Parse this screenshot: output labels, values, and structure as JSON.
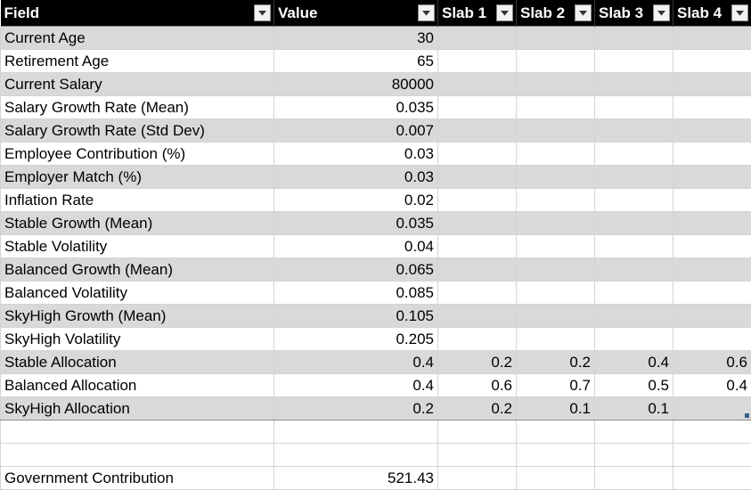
{
  "table": {
    "columns": [
      {
        "label": "Field"
      },
      {
        "label": "Value"
      },
      {
        "label": "Slab 1"
      },
      {
        "label": "Slab 2"
      },
      {
        "label": "Slab 3"
      },
      {
        "label": "Slab 4"
      }
    ],
    "rows": [
      {
        "cells": [
          "Current Age",
          "30",
          "",
          "",
          "",
          ""
        ]
      },
      {
        "cells": [
          "Retirement Age",
          "65",
          "",
          "",
          "",
          ""
        ]
      },
      {
        "cells": [
          "Current Salary",
          "80000",
          "",
          "",
          "",
          ""
        ]
      },
      {
        "cells": [
          "Salary Growth Rate (Mean)",
          "0.035",
          "",
          "",
          "",
          ""
        ]
      },
      {
        "cells": [
          "Salary Growth Rate (Std Dev)",
          "0.007",
          "",
          "",
          "",
          ""
        ]
      },
      {
        "cells": [
          "Employee Contribution (%)",
          "0.03",
          "",
          "",
          "",
          ""
        ]
      },
      {
        "cells": [
          "Employer Match (%)",
          "0.03",
          "",
          "",
          "",
          ""
        ]
      },
      {
        "cells": [
          "Inflation Rate",
          "0.02",
          "",
          "",
          "",
          ""
        ]
      },
      {
        "cells": [
          "Stable Growth (Mean)",
          "0.035",
          "",
          "",
          "",
          ""
        ]
      },
      {
        "cells": [
          "Stable Volatility",
          "0.04",
          "",
          "",
          "",
          ""
        ]
      },
      {
        "cells": [
          "Balanced Growth (Mean)",
          "0.065",
          "",
          "",
          "",
          ""
        ]
      },
      {
        "cells": [
          "Balanced Volatility",
          "0.085",
          "",
          "",
          "",
          ""
        ]
      },
      {
        "cells": [
          "SkyHigh Growth (Mean)",
          "0.105",
          "",
          "",
          "",
          ""
        ]
      },
      {
        "cells": [
          "SkyHigh Volatility",
          "0.205",
          "",
          "",
          "",
          ""
        ]
      },
      {
        "cells": [
          "Stable Allocation",
          "0.4",
          "0.2",
          "0.2",
          "0.4",
          "0.6"
        ]
      },
      {
        "cells": [
          "Balanced Allocation",
          "0.4",
          "0.6",
          "0.7",
          "0.5",
          "0.4"
        ]
      },
      {
        "cells": [
          "SkyHigh Allocation",
          "0.2",
          "0.2",
          "0.1",
          "0.1",
          ""
        ]
      }
    ]
  },
  "extra_rows": [
    {
      "cells": [
        "",
        "",
        "",
        "",
        "",
        ""
      ]
    },
    {
      "cells": [
        "",
        "",
        "",
        "",
        "",
        ""
      ]
    },
    {
      "cells": [
        "Government Contribution",
        "521.43",
        "",
        "",
        "",
        ""
      ]
    }
  ],
  "icons": {
    "filter": "dropdown-arrow-icon"
  },
  "colors": {
    "header_bg": "#000000",
    "header_text": "#ffffff",
    "band": "#d9d9d9",
    "handle": "#385d8a"
  }
}
